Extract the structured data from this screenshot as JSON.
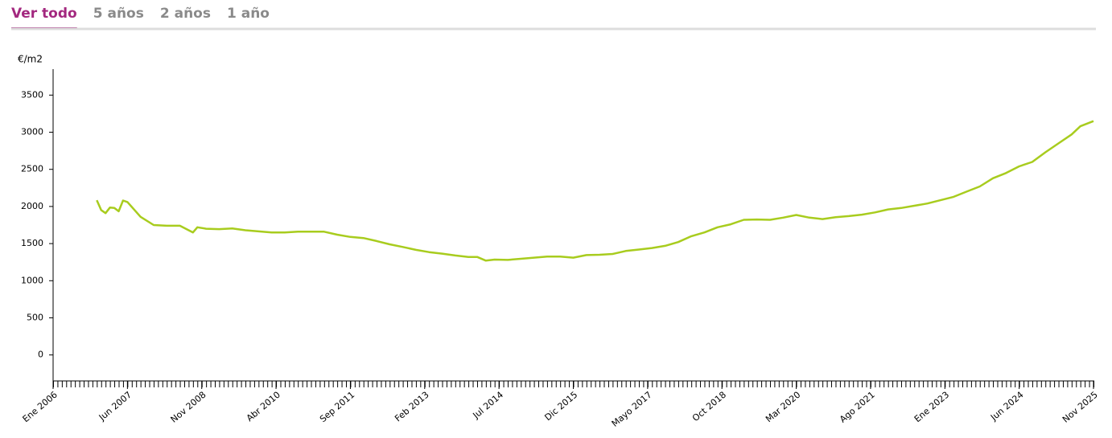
{
  "tabs": [
    {
      "label": "Ver todo",
      "active": true
    },
    {
      "label": "5 años",
      "active": false
    },
    {
      "label": "2 años",
      "active": false
    },
    {
      "label": "1 año",
      "active": false
    }
  ],
  "chart_data": {
    "type": "line",
    "y_label": "€/m2",
    "x": [
      "2006-11",
      "2006-12",
      "2007-01",
      "2007-02",
      "2007-03",
      "2007-04",
      "2007-05",
      "2007-06",
      "2007-09",
      "2007-12",
      "2008-03",
      "2008-06",
      "2008-09",
      "2008-10",
      "2008-12",
      "2009-03",
      "2009-06",
      "2009-09",
      "2009-12",
      "2010-03",
      "2010-06",
      "2010-09",
      "2010-12",
      "2011-03",
      "2011-06",
      "2011-09",
      "2011-12",
      "2012-03",
      "2012-06",
      "2012-09",
      "2012-12",
      "2013-03",
      "2013-06",
      "2013-09",
      "2013-12",
      "2014-02",
      "2014-04",
      "2014-06",
      "2014-09",
      "2014-12",
      "2015-03",
      "2015-06",
      "2015-09",
      "2015-12",
      "2016-03",
      "2016-06",
      "2016-09",
      "2016-12",
      "2017-03",
      "2017-06",
      "2017-09",
      "2017-12",
      "2018-03",
      "2018-06",
      "2018-09",
      "2018-12",
      "2019-03",
      "2019-06",
      "2019-09",
      "2019-12",
      "2020-03",
      "2020-06",
      "2020-09",
      "2020-12",
      "2021-03",
      "2021-06",
      "2021-09",
      "2021-12",
      "2022-03",
      "2022-06",
      "2022-09",
      "2022-12",
      "2023-03",
      "2023-06",
      "2023-09",
      "2023-12",
      "2024-03",
      "2024-06",
      "2024-09",
      "2024-12",
      "2025-03",
      "2025-06",
      "2025-08",
      "2025-11"
    ],
    "series": [
      {
        "color": "#a8cc1e",
        "values": [
          2085,
          1950,
          1910,
          1985,
          1980,
          1935,
          2080,
          2060,
          1860,
          1750,
          1740,
          1740,
          1650,
          1720,
          1700,
          1695,
          1705,
          1680,
          1665,
          1650,
          1650,
          1660,
          1660,
          1660,
          1620,
          1590,
          1575,
          1535,
          1490,
          1455,
          1415,
          1385,
          1365,
          1340,
          1320,
          1320,
          1270,
          1285,
          1280,
          1295,
          1310,
          1325,
          1325,
          1310,
          1345,
          1350,
          1360,
          1400,
          1420,
          1440,
          1470,
          1520,
          1600,
          1650,
          1720,
          1760,
          1820,
          1825,
          1820,
          1850,
          1885,
          1850,
          1830,
          1855,
          1870,
          1890,
          1920,
          1960,
          1980,
          2010,
          2040,
          2085,
          2130,
          2200,
          2270,
          2380,
          2450,
          2540,
          2600,
          2730,
          2850,
          2970,
          3080,
          3150
        ]
      }
    ],
    "xlim": [
      "2006-01",
      "2025-11"
    ],
    "xticks": [
      {
        "value": "2006-01",
        "label": "Ene 2006"
      },
      {
        "value": "2007-06",
        "label": "Jun 2007"
      },
      {
        "value": "2008-11",
        "label": "Nov 2008"
      },
      {
        "value": "2010-04",
        "label": "Abr 2010"
      },
      {
        "value": "2011-09",
        "label": "Sep 2011"
      },
      {
        "value": "2013-02",
        "label": "Feb 2013"
      },
      {
        "value": "2014-07",
        "label": "Jul 2014"
      },
      {
        "value": "2015-12",
        "label": "Dic 2015"
      },
      {
        "value": "2017-05",
        "label": "Mayo 2017"
      },
      {
        "value": "2018-10",
        "label": "Oct 2018"
      },
      {
        "value": "2020-03",
        "label": "Mar 2020"
      },
      {
        "value": "2021-08",
        "label": "Ago 2021"
      },
      {
        "value": "2023-01",
        "label": "Ene 2023"
      },
      {
        "value": "2024-06",
        "label": "Jun 2024"
      },
      {
        "value": "2025-11",
        "label": "Nov 2025"
      }
    ],
    "ylim": [
      -350,
      3850
    ],
    "yticks": [
      0,
      500,
      1000,
      1500,
      2000,
      2500,
      3000,
      3500
    ]
  }
}
